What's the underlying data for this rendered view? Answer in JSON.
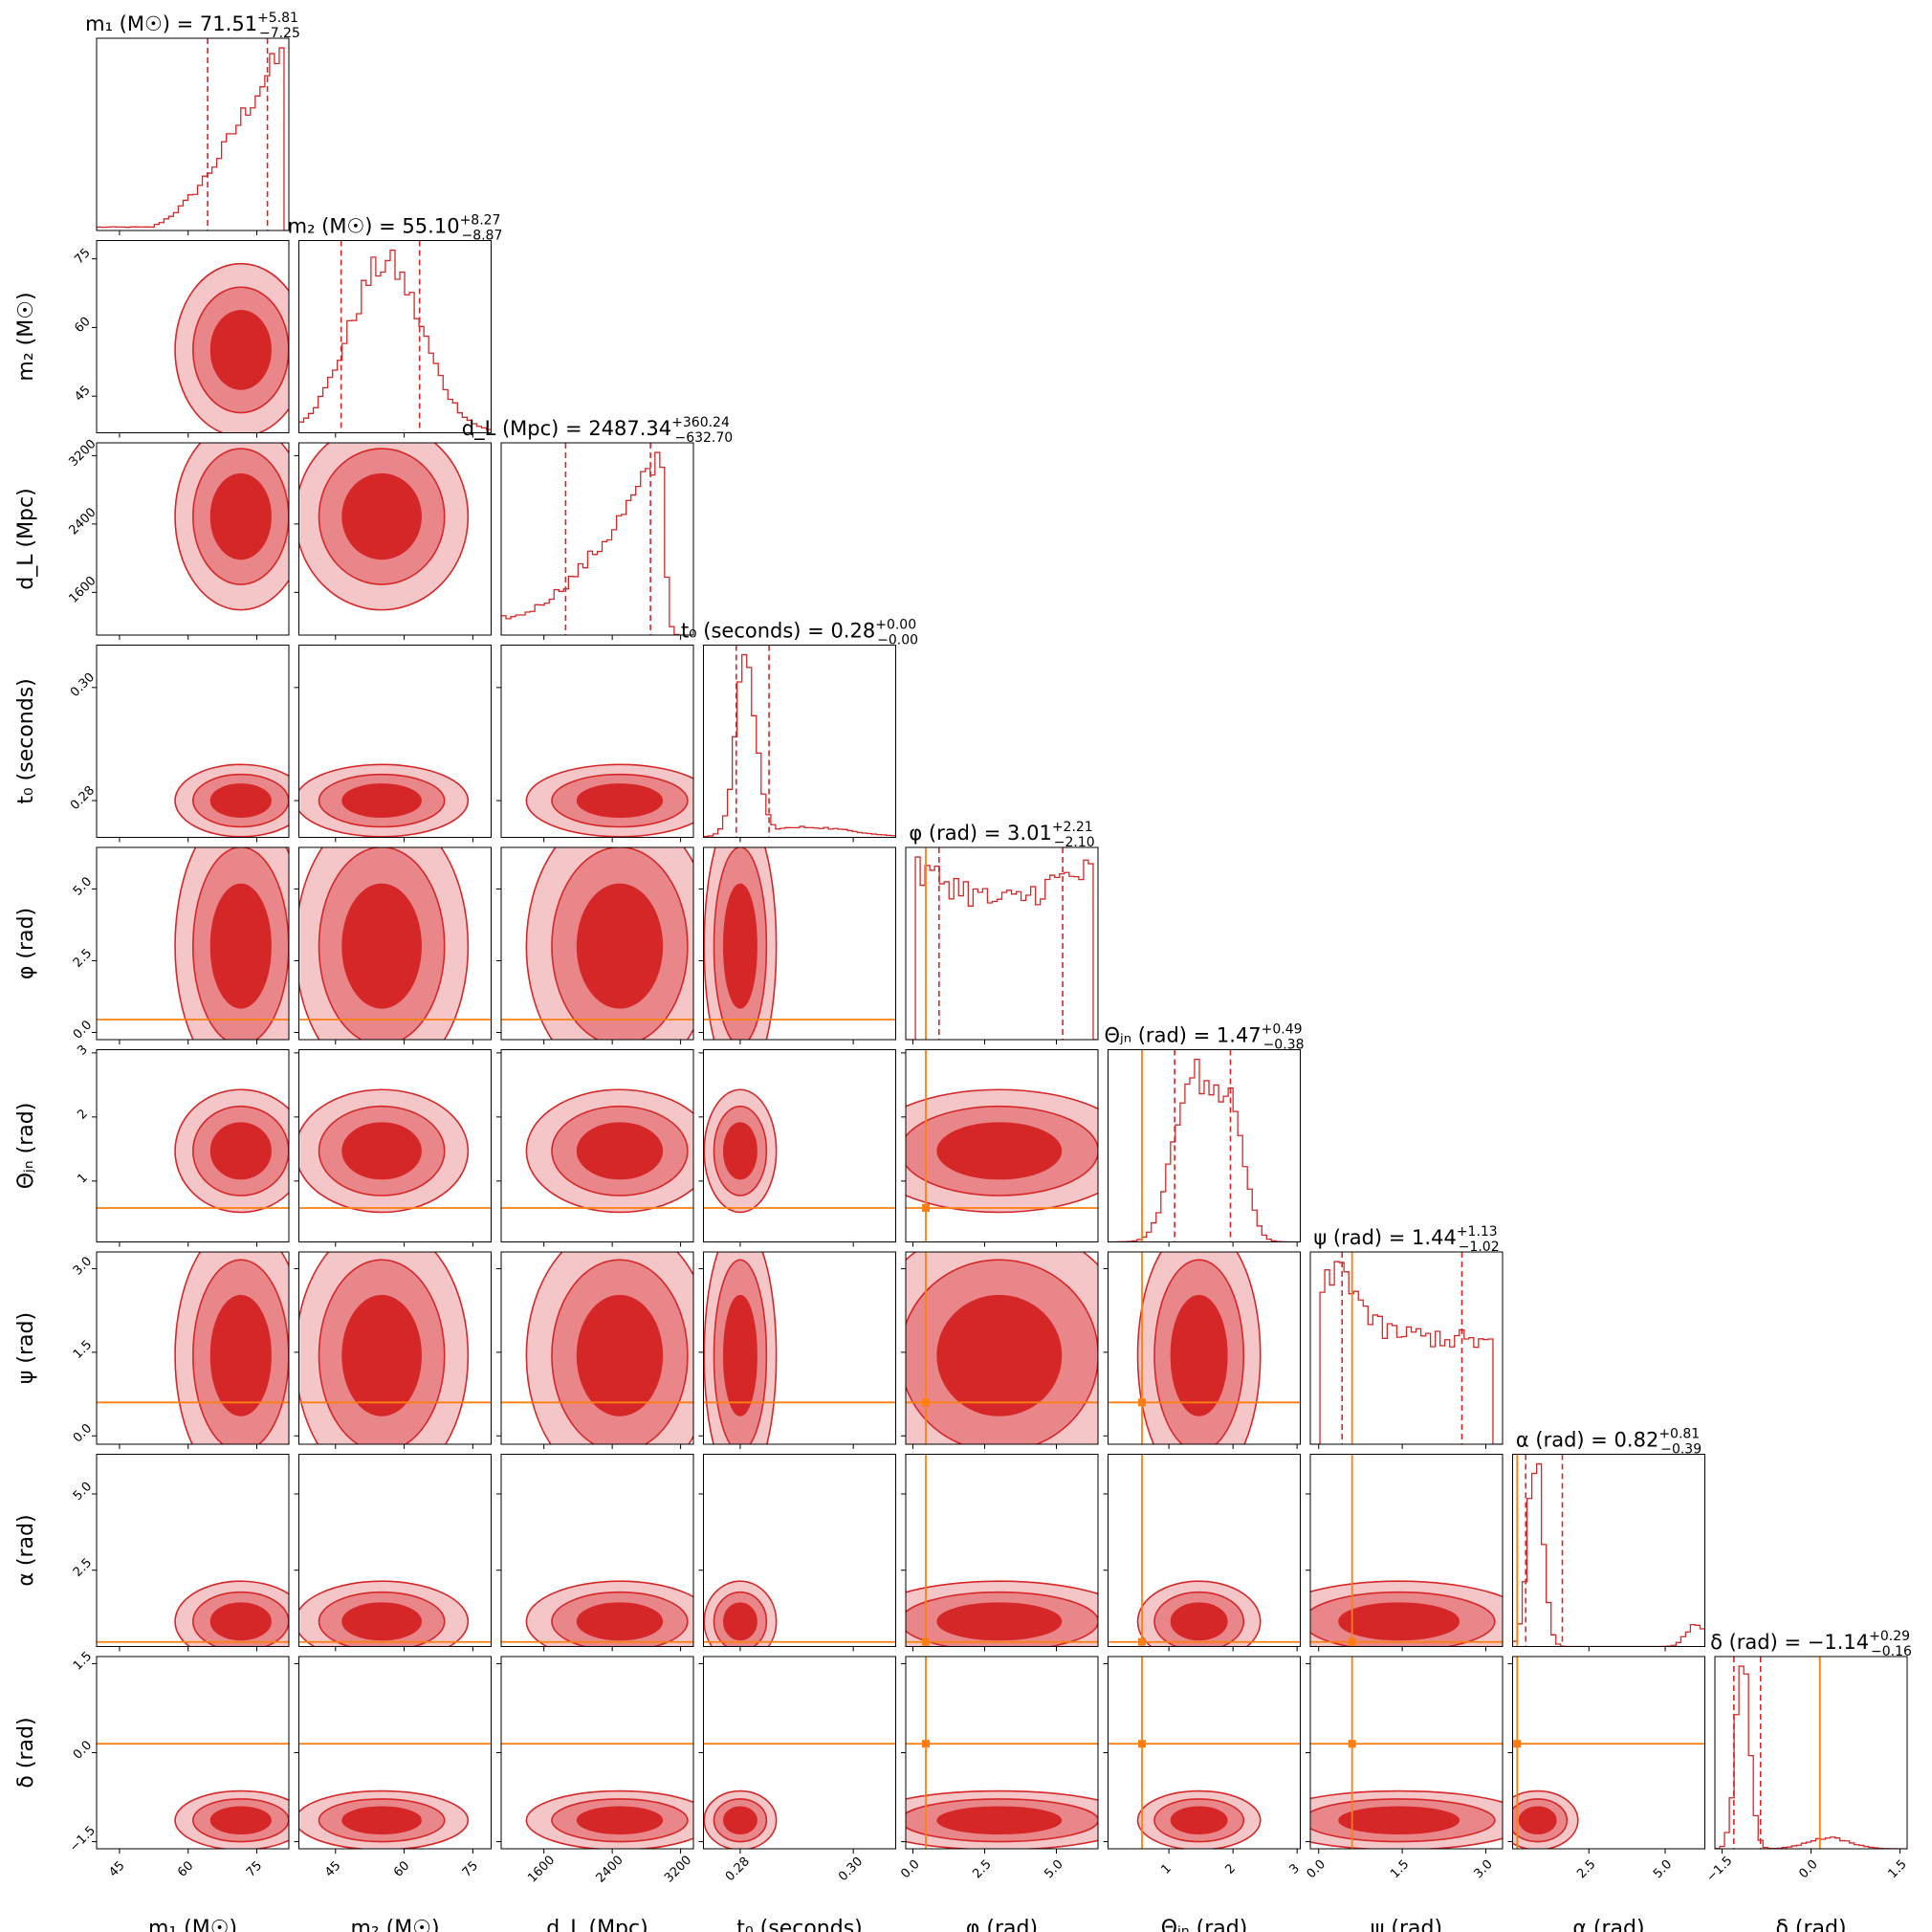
{
  "chart_data": {
    "type": "corner",
    "parameters": [
      {
        "key": "m1",
        "label": "m₁ (M☉)",
        "title": "m₁ (M☉) = 71.51",
        "median": 71.51,
        "plus": "+5.81",
        "minus": "−7.25",
        "range": [
          40,
          82
        ],
        "ticks": [
          45,
          60,
          75
        ],
        "q_lo": 64.26,
        "q_hi": 77.32,
        "truth": null,
        "tick_labels": [
          "45",
          "60",
          "75"
        ]
      },
      {
        "key": "m2",
        "label": "m₂ (M☉)",
        "title": "m₂ (M☉) = 55.10",
        "median": 55.1,
        "plus": "+8.27",
        "minus": "−8.87",
        "range": [
          37,
          79
        ],
        "ticks": [
          45,
          60,
          75
        ],
        "q_lo": 46.23,
        "q_hi": 63.37,
        "truth": null,
        "tick_labels": [
          "45",
          "60",
          "75"
        ]
      },
      {
        "key": "dL",
        "label": "d_L (Mpc)",
        "title": "d_L (Mpc) = 2487.34",
        "median": 2487.34,
        "plus": "+360.24",
        "minus": "−632.70",
        "range": [
          1100,
          3350
        ],
        "ticks": [
          1600,
          2400,
          3200
        ],
        "q_lo": 1854.64,
        "q_hi": 2847.58,
        "truth": null,
        "tick_labels": [
          "1600",
          "2400",
          "3200"
        ]
      },
      {
        "key": "t0",
        "label": "t₀ (seconds)",
        "title": "t₀ (seconds) = 0.28",
        "median": 0.28,
        "plus": "+0.00",
        "minus": "−0.00",
        "range": [
          0.2735,
          0.3075
        ],
        "ticks": [
          0.28,
          0.3
        ],
        "q_lo": 0.2793,
        "q_hi": 0.2851,
        "truth": null,
        "tick_labels": [
          "0.28",
          "0.30"
        ]
      },
      {
        "key": "phi",
        "label": "φ (rad)",
        "title": "φ (rad) = 3.01",
        "median": 3.01,
        "plus": "+2.21",
        "minus": "−2.10",
        "range": [
          -0.25,
          6.45
        ],
        "ticks": [
          0.0,
          2.5,
          5.0
        ],
        "q_lo": 0.91,
        "q_hi": 5.22,
        "truth": 0.45,
        "tick_labels": [
          "0.0",
          "2.5",
          "5.0"
        ]
      },
      {
        "key": "theta",
        "label": "Θⱼₙ (rad)",
        "title": "Θⱼₙ (rad) = 1.47",
        "median": 1.47,
        "plus": "+0.49",
        "minus": "−0.38",
        "range": [
          0.05,
          3.05
        ],
        "ticks": [
          1,
          2,
          3
        ],
        "q_lo": 1.09,
        "q_hi": 1.96,
        "truth": 0.58,
        "tick_labels": [
          "1",
          "2",
          "3"
        ]
      },
      {
        "key": "psi",
        "label": "ψ (rad)",
        "title": "ψ (rad) = 1.44",
        "median": 1.44,
        "plus": "+1.13",
        "minus": "−1.02",
        "range": [
          -0.15,
          3.3
        ],
        "ticks": [
          0.0,
          1.5,
          3.0
        ],
        "q_lo": 0.42,
        "q_hi": 2.57,
        "truth": 0.6,
        "tick_labels": [
          "0.0",
          "1.5",
          "3.0"
        ]
      },
      {
        "key": "alpha",
        "label": "α (rad)",
        "title": "α (rad) = 0.82",
        "median": 0.82,
        "plus": "+0.81",
        "minus": "−0.39",
        "range": [
          0.0,
          6.3
        ],
        "ticks": [
          2.5,
          5.0
        ],
        "q_lo": 0.43,
        "q_hi": 1.63,
        "truth": 0.15,
        "tick_labels": [
          "2.5",
          "5.0"
        ]
      },
      {
        "key": "delta",
        "label": "δ (rad)",
        "title": "δ (rad) = −1.14",
        "median": -1.14,
        "plus": "+0.29",
        "minus": "−0.16",
        "range": [
          -1.62,
          1.62
        ],
        "ticks": [
          -1.5,
          0.0,
          1.5
        ],
        "q_lo": -1.3,
        "q_hi": -0.85,
        "truth": 0.15,
        "tick_labels": [
          "−1.5",
          "0.0",
          "1.5"
        ]
      }
    ],
    "colors": {
      "contour_dark": "#d62728",
      "contour_mid": "#e8868a",
      "contour_light": "#f5c6c8",
      "truth": "#ff7f0e",
      "hist": "#d62728"
    }
  }
}
